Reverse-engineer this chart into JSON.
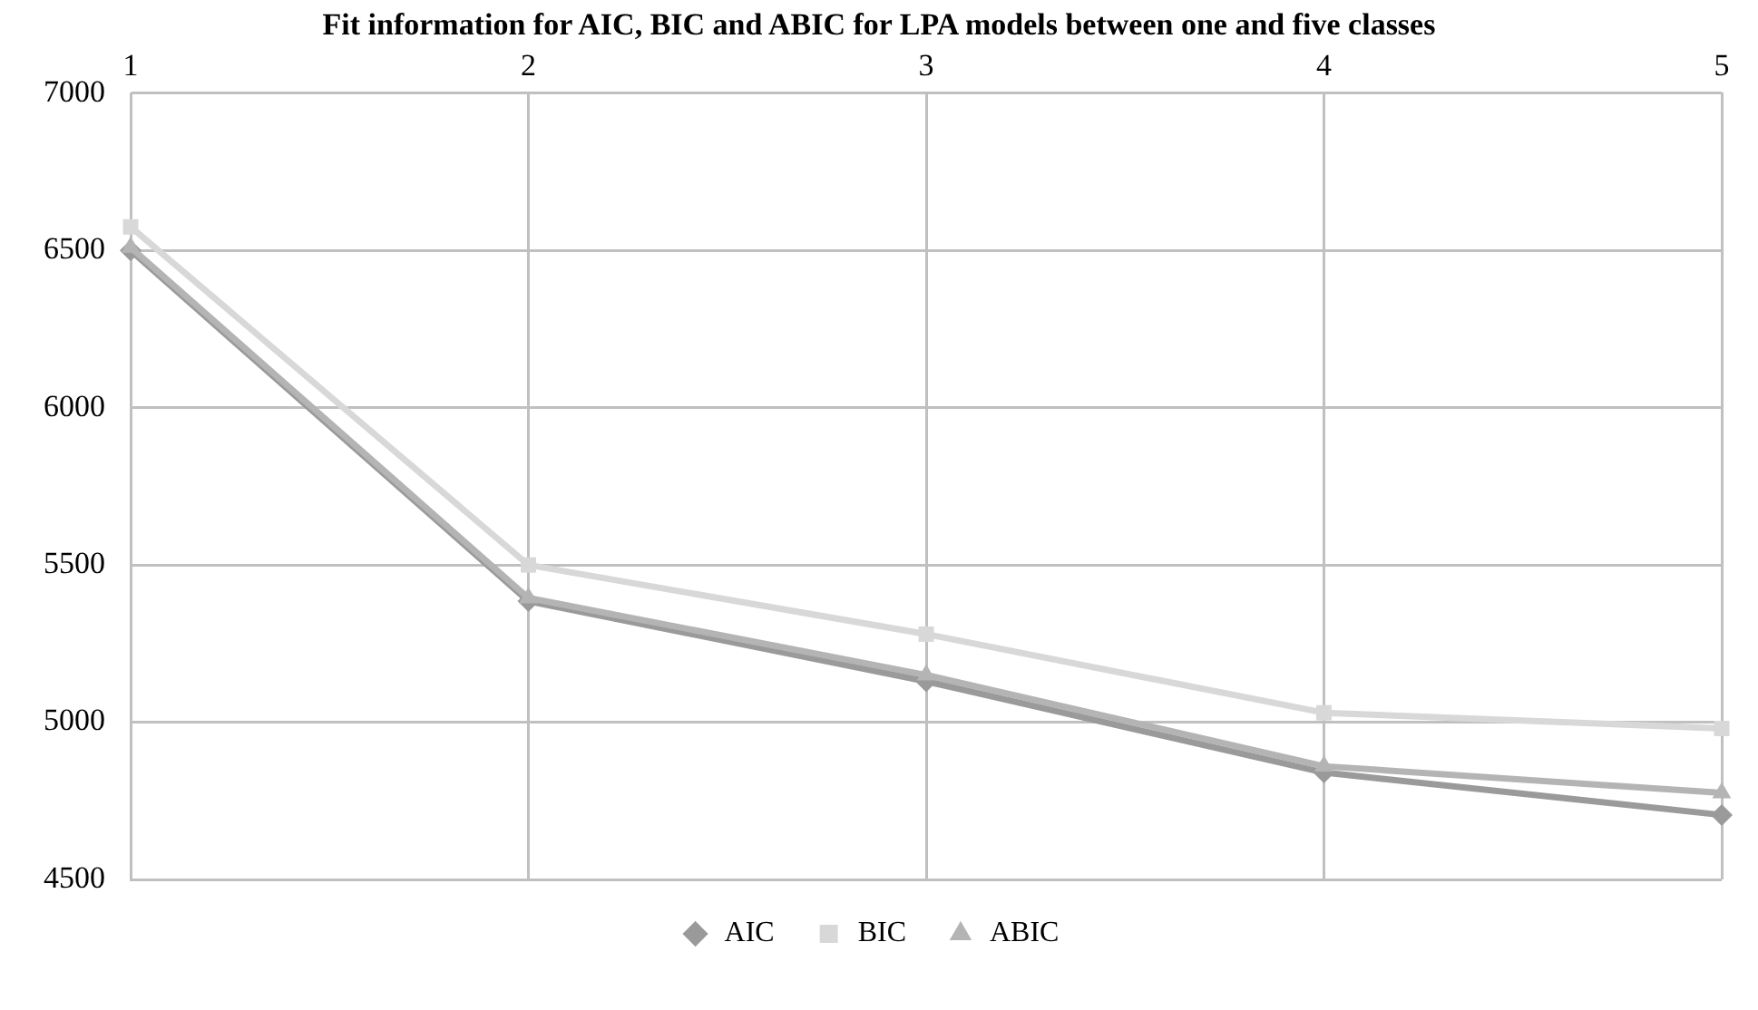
{
  "chart_data": {
    "type": "line",
    "title": "Fit information for AIC, BIC and ABIC for LPA models between one and five classes",
    "categories": [
      "1",
      "2",
      "3",
      "4",
      "5"
    ],
    "series": [
      {
        "name": "AIC",
        "color": "#9a9a9a",
        "marker": "diamond",
        "values": [
          6500,
          5385,
          5130,
          4840,
          4705
        ]
      },
      {
        "name": "BIC",
        "color": "#d8d8d8",
        "marker": "square",
        "values": [
          6575,
          5500,
          5280,
          5030,
          4980
        ]
      },
      {
        "name": "ABIC",
        "color": "#b4b4b4",
        "marker": "triangle",
        "values": [
          6510,
          5395,
          5150,
          4860,
          4775
        ]
      }
    ],
    "ylim": [
      4500,
      7000
    ],
    "yticks": [
      4500,
      5000,
      5500,
      6000,
      6500,
      7000
    ],
    "grid": true,
    "legend": "bottom",
    "line_style": "solid"
  }
}
